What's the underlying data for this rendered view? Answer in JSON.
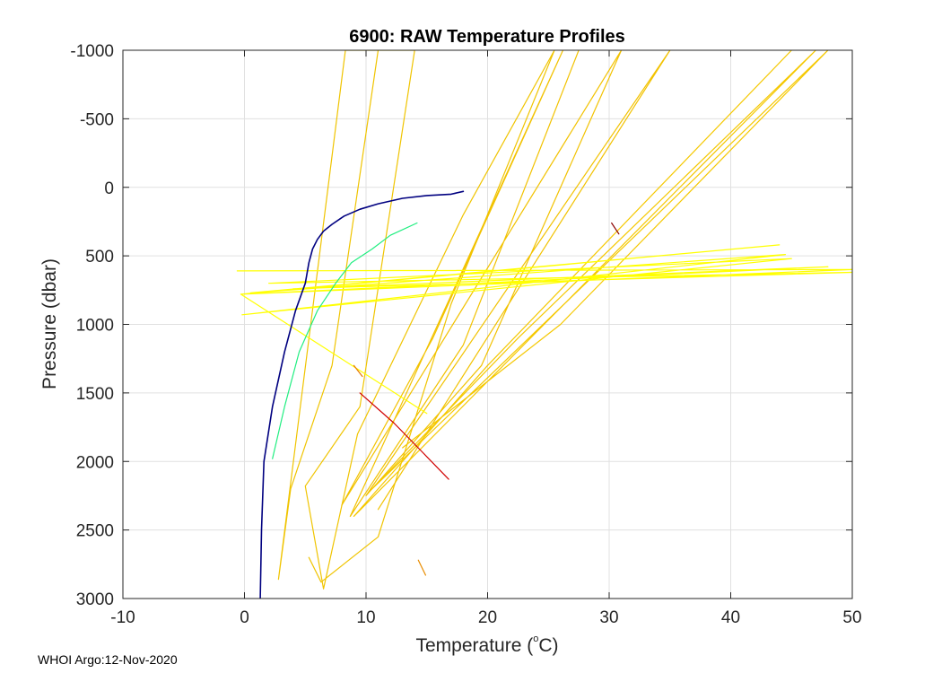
{
  "footer": {
    "note": "WHOI Argo:12-Nov-2020"
  },
  "chart_data": {
    "type": "line",
    "title": "6900: RAW Temperature Profiles",
    "xlabel": "Temperature (",
    "xlabel_unit": "C)",
    "xlabel_degree": "o",
    "ylabel": "Pressure (dbar)",
    "xlim": [
      -10,
      50
    ],
    "ylim": [
      -1000,
      3000
    ],
    "y_reversed": true,
    "grid": true,
    "xticks": [
      -10,
      0,
      10,
      20,
      30,
      40,
      50
    ],
    "yticks": [
      -1000,
      -500,
      0,
      500,
      1000,
      1500,
      2000,
      2500,
      3000
    ],
    "series": [
      {
        "name": "profile-yellow-gold",
        "color": "#f0c400",
        "points": [
          [
            11,
            -1000
          ],
          [
            7.2,
            1300
          ],
          [
            3.8,
            2200
          ],
          [
            2.8,
            2860
          ],
          [
            8.3,
            -1000
          ],
          [
            14,
            -1000
          ],
          [
            9.5,
            1600
          ],
          [
            5,
            2180
          ],
          [
            6.5,
            2930
          ],
          [
            9.3,
            1800
          ],
          [
            18,
            200
          ],
          [
            25.5,
            -1000
          ],
          [
            17,
            850
          ],
          [
            11,
            2550
          ],
          [
            6.3,
            2880
          ],
          [
            5.3,
            2700
          ]
        ]
      },
      {
        "name": "profile-yellow-gold-2",
        "color": "#f2c200",
        "points": [
          [
            27.5,
            -1000
          ],
          [
            18,
            1150
          ],
          [
            8.7,
            2400
          ],
          [
            26.2,
            -1000
          ],
          [
            15.5,
            1100
          ],
          [
            8,
            2320
          ],
          [
            31,
            -1000
          ],
          [
            19.5,
            1300
          ],
          [
            10,
            2250
          ],
          [
            35,
            -1000
          ],
          [
            11,
            2350
          ]
        ]
      },
      {
        "name": "profile-yellow-gold-3",
        "color": "#f5c800",
        "points": [
          [
            45,
            -1000
          ],
          [
            20,
            1300
          ],
          [
            9,
            2400
          ],
          [
            47,
            -1000
          ],
          [
            22.5,
            1100
          ],
          [
            10.5,
            2200
          ],
          [
            48,
            -1000
          ],
          [
            26,
            1000
          ],
          [
            13,
            1900
          ]
        ]
      },
      {
        "name": "profile-bright-yellow",
        "color": "#ffff00",
        "points": [
          [
            -0.6,
            610
          ],
          [
            50,
            600
          ],
          [
            -0.3,
            780
          ],
          [
            44,
            420
          ],
          [
            0.5,
            770
          ],
          [
            44.5,
            490
          ],
          [
            -0.2,
            930
          ],
          [
            45,
            520
          ],
          [
            2,
            700
          ],
          [
            50,
            620
          ],
          [
            4,
            740
          ],
          [
            48,
            580
          ],
          [
            -0.3,
            780
          ],
          [
            15,
            1650
          ]
        ]
      },
      {
        "name": "profile-red",
        "color": "#d00000",
        "points": [
          [
            9.5,
            1500
          ],
          [
            12.3,
            1720
          ],
          [
            14.5,
            1920
          ],
          [
            16.8,
            2130
          ]
        ]
      },
      {
        "name": "profile-dark-red-short",
        "color": "#8b0000",
        "points": [
          [
            30.2,
            260
          ],
          [
            30.8,
            340
          ]
        ]
      },
      {
        "name": "profile-orange-1",
        "color": "#e87800",
        "points": [
          [
            9,
            1300
          ],
          [
            9.7,
            1380
          ]
        ]
      },
      {
        "name": "profile-orange-2",
        "color": "#e88c00",
        "points": [
          [
            14.3,
            2720
          ],
          [
            14.9,
            2830
          ]
        ]
      },
      {
        "name": "profile-dark-blue",
        "color": "#000080",
        "points": [
          [
            1.3,
            3000
          ],
          [
            1.4,
            2500
          ],
          [
            1.6,
            2000
          ],
          [
            2.3,
            1600
          ],
          [
            3.3,
            1200
          ],
          [
            4.2,
            900
          ],
          [
            5,
            700
          ],
          [
            5.3,
            550
          ],
          [
            5.6,
            450
          ],
          [
            6,
            380
          ],
          [
            6.5,
            320
          ],
          [
            7.2,
            270
          ],
          [
            8.2,
            210
          ],
          [
            9.5,
            160
          ],
          [
            11,
            120
          ],
          [
            13,
            80
          ],
          [
            15,
            60
          ],
          [
            17,
            50
          ],
          [
            18,
            30
          ]
        ]
      },
      {
        "name": "profile-green",
        "color": "#20ee80",
        "points": [
          [
            2.3,
            1980
          ],
          [
            3.3,
            1600
          ],
          [
            4.5,
            1200
          ],
          [
            6,
            900
          ],
          [
            7.5,
            700
          ],
          [
            8.8,
            550
          ],
          [
            10.5,
            450
          ],
          [
            12,
            350
          ],
          [
            14.2,
            260
          ]
        ]
      }
    ]
  }
}
